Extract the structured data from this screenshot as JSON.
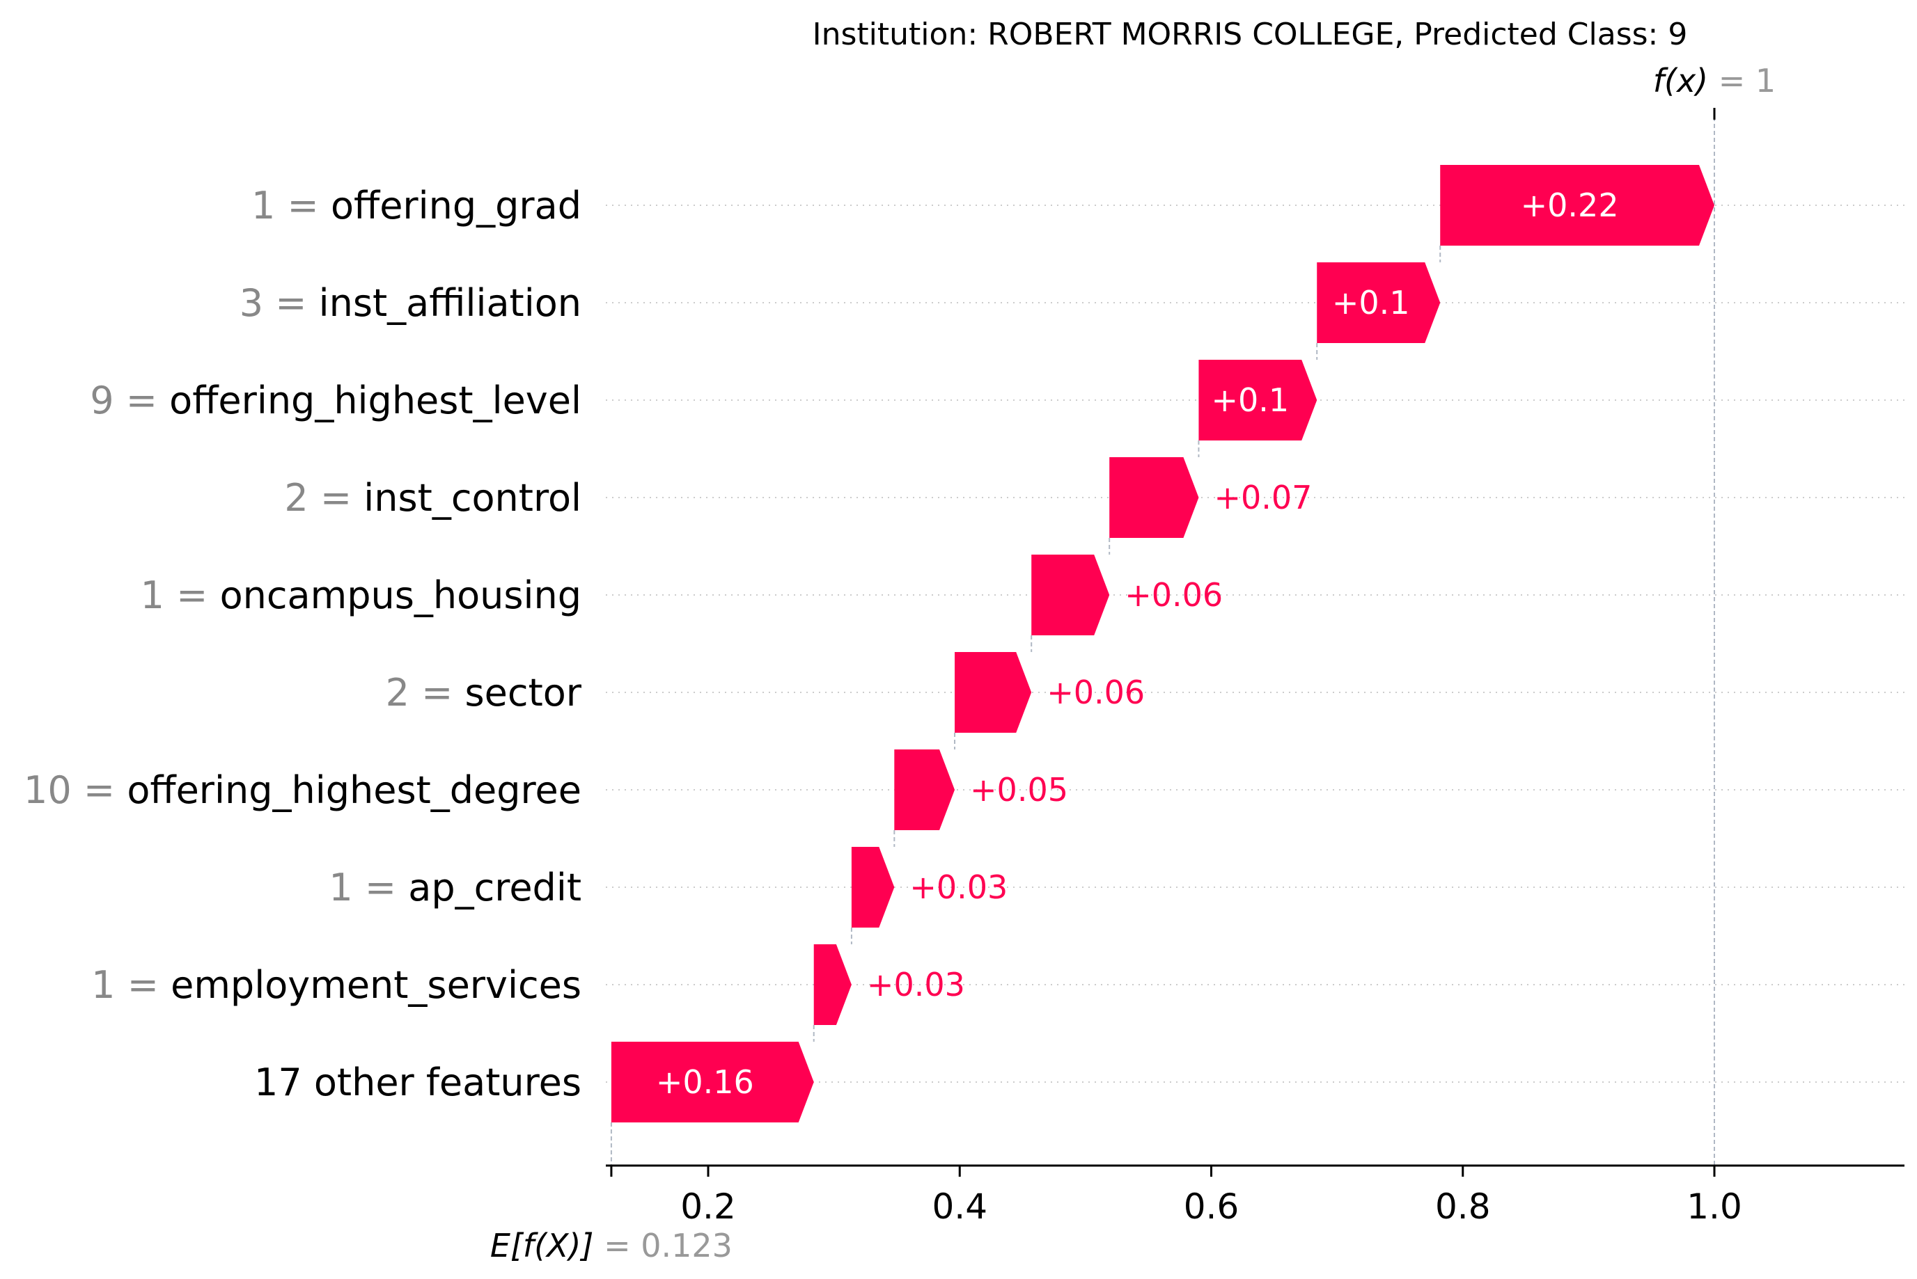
{
  "chart_data": {
    "type": "waterfall",
    "title": "Institution: ROBERT MORRIS COLLEGE, Predicted Class: 9",
    "fx_label": "f(x)",
    "fx_value": "1",
    "base_label": "E[f(X)]",
    "base_value_text": "0.123",
    "base_value": 0.123,
    "final_value": 1.0,
    "xlim": [
      0.1,
      1.15
    ],
    "x_ticks": [
      0.2,
      0.4,
      0.6,
      0.8,
      1.0
    ],
    "x_tick_labels": [
      "0.2",
      "0.4",
      "0.6",
      "0.8",
      "1.0"
    ],
    "colors": {
      "positive": "#ff0051",
      "connector": "#b0b8c4",
      "grid": "#cccccc"
    },
    "features": [
      {
        "value": "1",
        "name": "offering_grad",
        "start": 0.782,
        "end": 1.0,
        "label": "+0.22"
      },
      {
        "value": "3",
        "name": "inst_affiliation",
        "start": 0.684,
        "end": 0.782,
        "label": "+0.1"
      },
      {
        "value": "9",
        "name": "offering_highest_level",
        "start": 0.59,
        "end": 0.684,
        "label": "+0.1"
      },
      {
        "value": "2",
        "name": "inst_control",
        "start": 0.519,
        "end": 0.59,
        "label": "+0.07"
      },
      {
        "value": "1",
        "name": "oncampus_housing",
        "start": 0.457,
        "end": 0.519,
        "label": "+0.06"
      },
      {
        "value": "2",
        "name": "sector",
        "start": 0.396,
        "end": 0.457,
        "label": "+0.06"
      },
      {
        "value": "10",
        "name": "offering_highest_degree",
        "start": 0.348,
        "end": 0.396,
        "label": "+0.05"
      },
      {
        "value": "1",
        "name": "ap_credit",
        "start": 0.314,
        "end": 0.348,
        "label": "+0.03"
      },
      {
        "value": "1",
        "name": "employment_services",
        "start": 0.284,
        "end": 0.314,
        "label": "+0.03"
      },
      {
        "value": "",
        "name": "17 other features",
        "start": 0.123,
        "end": 0.284,
        "label": "+0.16"
      }
    ]
  }
}
